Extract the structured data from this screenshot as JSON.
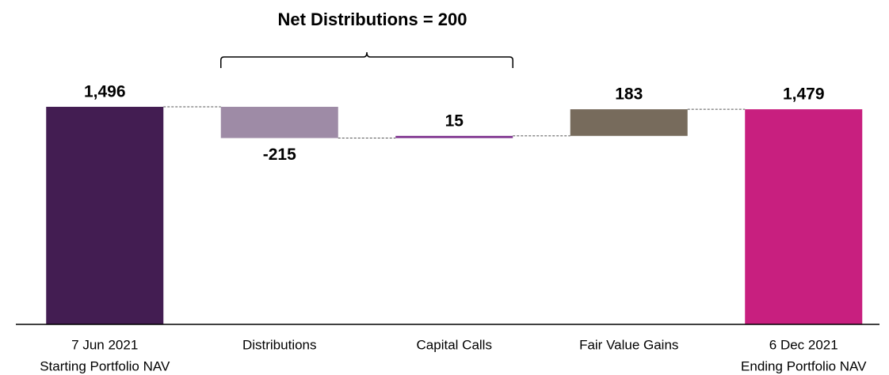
{
  "chart_data": {
    "type": "waterfall",
    "title": "Net Distributions = 200",
    "categories": [
      [
        "7 Jun 2021",
        "Starting Portfolio NAV"
      ],
      [
        "Distributions"
      ],
      [
        "Capital Calls"
      ],
      [
        "Fair Value Gains"
      ],
      [
        "6 Dec 2021",
        "Ending Portfolio NAV"
      ]
    ],
    "values": [
      1496,
      -215,
      15,
      183,
      1479
    ],
    "value_labels": [
      "1,496",
      "-215",
      "15",
      "183",
      "1,479"
    ],
    "colors": [
      "#431d52",
      "#9e8ba6",
      "#7b2d8b",
      "#776b5c",
      "#c81f7f"
    ]
  }
}
